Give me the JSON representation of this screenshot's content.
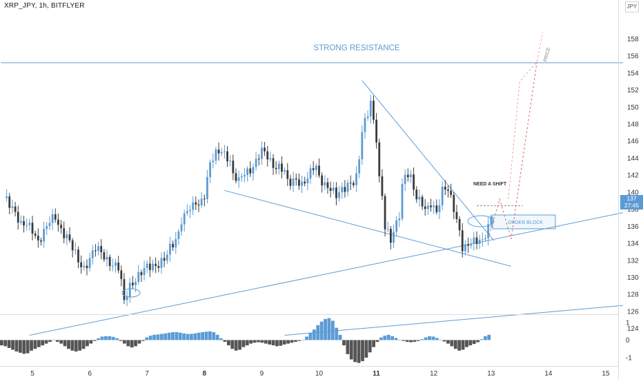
{
  "header": {
    "title": "XRP_JPY, 1h, BITFLYER",
    "currency_badge": "JPY"
  },
  "price_tag": {
    "price": "137",
    "countdown": "27:45"
  },
  "annotations": {
    "strong_resistance": "STRONG RESISTANCE",
    "need_a_shift": "NEED A SHIFT",
    "order_block": "ORDER BLOCK",
    "price": "PRICE"
  },
  "colors": {
    "bull": "#5b9bd5",
    "bear": "#3a3a3a",
    "line": "#5b9bd5",
    "projection": "#e06666",
    "osc_bear": "#555555"
  },
  "chart_data": {
    "type": "candlestick",
    "title": "XRP_JPY, 1h, BITFLYER",
    "y_ticks": [
      124,
      126,
      128,
      130,
      132,
      134,
      136,
      138,
      140,
      142,
      144,
      146,
      148,
      150,
      152,
      154,
      156,
      158
    ],
    "x_ticks": [
      "5",
      "6",
      "7",
      "8",
      "9",
      "10",
      "11",
      "12",
      "13",
      "14",
      "15"
    ],
    "ylim": [
      122.8,
      159.8
    ],
    "grid": false,
    "price_path": [
      [
        4.5,
        139.3
      ],
      [
        4.6,
        138.6
      ],
      [
        4.7,
        137.9
      ],
      [
        4.8,
        136.2
      ],
      [
        4.9,
        136.0
      ],
      [
        5.0,
        135.5
      ],
      [
        5.1,
        134.4
      ],
      [
        5.2,
        135.4
      ],
      [
        5.3,
        136.4
      ],
      [
        5.4,
        137.0
      ],
      [
        5.5,
        135.7
      ],
      [
        5.6,
        134.9
      ],
      [
        5.7,
        133.3
      ],
      [
        5.8,
        131.8
      ],
      [
        5.9,
        131.2
      ],
      [
        6.0,
        132.3
      ],
      [
        6.1,
        133.3
      ],
      [
        6.2,
        132.8
      ],
      [
        6.3,
        132.2
      ],
      [
        6.4,
        131.6
      ],
      [
        6.5,
        131.0
      ],
      [
        6.55,
        129.3
      ],
      [
        6.6,
        127.0
      ],
      [
        6.65,
        128.2
      ],
      [
        6.7,
        129.2
      ],
      [
        6.75,
        129.5
      ],
      [
        6.8,
        129.9
      ],
      [
        6.9,
        130.4
      ],
      [
        7.0,
        131.1
      ],
      [
        7.1,
        131.5
      ],
      [
        7.2,
        131.7
      ],
      [
        7.3,
        132.0
      ],
      [
        7.35,
        132.5
      ],
      [
        7.4,
        133.3
      ],
      [
        7.5,
        134.5
      ],
      [
        7.55,
        135.5
      ],
      [
        7.6,
        136.9
      ],
      [
        7.65,
        137.2
      ],
      [
        7.7,
        137.7
      ],
      [
        7.8,
        138.1
      ],
      [
        7.85,
        138.8
      ],
      [
        7.9,
        138.6
      ],
      [
        7.95,
        139.2
      ],
      [
        8.0,
        139.9
      ],
      [
        8.1,
        143.3
      ],
      [
        8.2,
        144.3
      ],
      [
        8.3,
        145.0
      ],
      [
        8.4,
        144.3
      ],
      [
        8.45,
        143.7
      ],
      [
        8.5,
        141.9
      ],
      [
        8.6,
        141.1
      ],
      [
        8.7,
        142.4
      ],
      [
        8.8,
        142.8
      ],
      [
        8.9,
        143.5
      ],
      [
        9.0,
        144.7
      ],
      [
        9.1,
        144.3
      ],
      [
        9.2,
        143.3
      ],
      [
        9.3,
        142.9
      ],
      [
        9.4,
        142.2
      ],
      [
        9.45,
        141.1
      ],
      [
        9.5,
        141.2
      ],
      [
        9.6,
        141.8
      ],
      [
        9.7,
        140.8
      ],
      [
        9.8,
        141.4
      ],
      [
        9.9,
        143.0
      ],
      [
        9.95,
        143.1
      ],
      [
        10.0,
        142.1
      ],
      [
        10.1,
        140.8
      ],
      [
        10.2,
        140.1
      ],
      [
        10.3,
        139.6
      ],
      [
        10.4,
        140.6
      ],
      [
        10.5,
        140.9
      ],
      [
        10.6,
        140.9
      ],
      [
        10.65,
        141.5
      ],
      [
        10.7,
        144.0
      ],
      [
        10.75,
        147.3
      ],
      [
        10.8,
        148.6
      ],
      [
        10.85,
        149.6
      ],
      [
        10.9,
        150.7
      ],
      [
        10.95,
        148.2
      ],
      [
        11.0,
        146.0
      ],
      [
        11.05,
        141.2
      ],
      [
        11.1,
        139.5
      ],
      [
        11.15,
        136.0
      ],
      [
        11.2,
        135.5
      ],
      [
        11.25,
        134.7
      ],
      [
        11.3,
        135.5
      ],
      [
        11.4,
        137.1
      ],
      [
        11.45,
        140.4
      ],
      [
        11.5,
        141.8
      ],
      [
        11.55,
        142.2
      ],
      [
        11.6,
        141.9
      ],
      [
        11.65,
        140.8
      ],
      [
        11.7,
        139.5
      ],
      [
        11.8,
        138.5
      ],
      [
        11.85,
        137.6
      ],
      [
        11.9,
        138.0
      ],
      [
        11.95,
        138.7
      ],
      [
        12.0,
        138.3
      ],
      [
        12.05,
        138.0
      ],
      [
        12.1,
        139.0
      ],
      [
        12.15,
        140.2
      ],
      [
        12.2,
        140.4
      ],
      [
        12.25,
        139.9
      ],
      [
        12.3,
        139.1
      ],
      [
        12.35,
        138.1
      ],
      [
        12.4,
        136.8
      ],
      [
        12.45,
        135.7
      ],
      [
        12.5,
        133.7
      ],
      [
        12.55,
        133.5
      ],
      [
        12.6,
        133.7
      ],
      [
        12.7,
        134.0
      ],
      [
        12.8,
        134.5
      ],
      [
        12.85,
        134.5
      ],
      [
        12.9,
        135.3
      ],
      [
        12.95,
        136.0
      ],
      [
        13.0,
        137.0
      ]
    ],
    "lines": [
      {
        "name": "strong-resistance",
        "points": [
          [
            4.45,
            155.2
          ],
          [
            15.3,
            155.2
          ]
        ]
      },
      {
        "name": "lower-channel-top",
        "points": [
          [
            8.35,
            140.2
          ],
          [
            13.35,
            131.3
          ]
        ]
      },
      {
        "name": "descending-trendline",
        "points": [
          [
            10.75,
            153.1
          ],
          [
            13.05,
            134.3
          ]
        ]
      },
      {
        "name": "rising-trendline",
        "points": [
          [
            4.95,
            123.2
          ],
          [
            15.3,
            137.6
          ]
        ]
      },
      {
        "name": "lower-parallel",
        "points": [
          [
            9.4,
            123.2
          ],
          [
            15.3,
            126.7
          ]
        ]
      },
      {
        "name": "need-shift-level",
        "points": [
          [
            12.75,
            138.4
          ],
          [
            13.55,
            138.4
          ]
        ]
      }
    ],
    "projection": [
      [
        12.95,
        134.5
      ],
      [
        13.15,
        139.2
      ],
      [
        13.35,
        134.5
      ],
      [
        13.8,
        155.3
      ]
    ],
    "projection_alt": [
      [
        13.3,
        139.2
      ],
      [
        13.5,
        153.0
      ],
      [
        13.8,
        155.3
      ],
      [
        13.9,
        158.8
      ]
    ],
    "oscillator": {
      "y_ticks": [
        -1,
        0,
        1
      ],
      "ylim": [
        -1.4,
        1.4
      ],
      "values": [
        -0.3,
        -0.35,
        -0.45,
        -0.55,
        -0.65,
        -0.72,
        -0.78,
        -0.75,
        -0.6,
        -0.5,
        -0.4,
        -0.3,
        -0.2,
        -0.1,
        0.0,
        -0.1,
        -0.2,
        -0.35,
        -0.5,
        -0.6,
        -0.65,
        -0.6,
        -0.5,
        -0.35,
        -0.2,
        -0.05,
        0.1,
        0.2,
        0.22,
        0.22,
        0.18,
        0.1,
        -0.05,
        -0.2,
        -0.35,
        -0.42,
        -0.35,
        -0.2,
        -0.05,
        0.15,
        0.25,
        0.3,
        0.32,
        0.35,
        0.38,
        0.42,
        0.45,
        0.45,
        0.42,
        0.38,
        0.35,
        0.35,
        0.38,
        0.42,
        0.45,
        0.48,
        0.5,
        0.45,
        0.3,
        0.1,
        -0.1,
        -0.3,
        -0.5,
        -0.6,
        -0.55,
        -0.4,
        -0.3,
        -0.2,
        -0.15,
        -0.12,
        -0.15,
        -0.2,
        -0.25,
        -0.3,
        -0.35,
        -0.32,
        -0.25,
        -0.2,
        -0.15,
        -0.1,
        -0.05,
        0.0,
        0.2,
        0.4,
        0.6,
        0.85,
        1.05,
        1.2,
        1.25,
        1.1,
        0.7,
        0.3,
        -0.3,
        -0.8,
        -1.1,
        -1.25,
        -1.3,
        -1.2,
        -1.0,
        -0.7,
        -0.4,
        -0.1,
        0.15,
        0.25,
        0.3,
        0.22,
        0.12,
        0.02,
        -0.05,
        -0.1,
        -0.12,
        -0.1,
        -0.05,
        0.05,
        0.15,
        0.22,
        0.2,
        0.12,
        0.02,
        -0.08,
        -0.2,
        -0.35,
        -0.5,
        -0.6,
        -0.55,
        -0.4,
        -0.3,
        -0.22,
        -0.12,
        0.05,
        0.22,
        0.3
      ]
    }
  }
}
